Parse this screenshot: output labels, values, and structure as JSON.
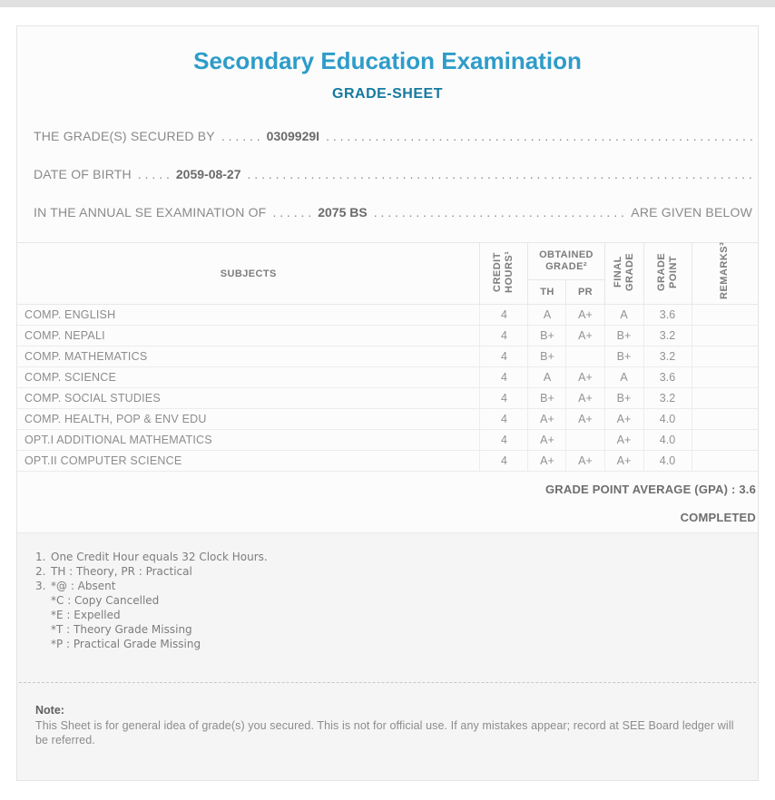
{
  "colors": {
    "title-color": "#2e9cc9",
    "subtitle-color": "#15799f"
  },
  "header": {
    "title": "Secondary Education Examination",
    "subtitle": "GRADE-SHEET"
  },
  "info": {
    "dots_fill": ". . . . . . . . . . . . . . . . . . . . . . . . . . . . . . . . . . . . . . . . . . . . . . . . . . . . . . . . . . . . . . . . . . . . . . . . . . . . . . . . . . . . . . . . . . . .",
    "lines": [
      {
        "label": "THE GRADE(S) SECURED BY",
        "dots_mid": ". . . . . .",
        "value": "0309929I",
        "suffix": ""
      },
      {
        "label": "DATE OF BIRTH",
        "dots_mid": ". . . . .",
        "value": "2059-08-27",
        "suffix": ""
      },
      {
        "label": "IN THE ANNUAL SE EXAMINATION OF",
        "dots_mid": ". . . . . .",
        "value": "2075 BS",
        "suffix": "ARE GIVEN BELOW"
      }
    ]
  },
  "table": {
    "headers": {
      "subjects": "SUBJECTS",
      "credit_hours": "CREDIT HOURS¹",
      "obtained_grade": "OBTAINED GRADE²",
      "th": "TH",
      "pr": "PR",
      "final_grade": "FINAL GRADE",
      "grade_point": "GRADE POINT",
      "remarks": "REMARKS³"
    },
    "rows": [
      {
        "subject": "COMP. ENGLISH",
        "credit": "4",
        "th": "A",
        "pr": "A+",
        "final": "A",
        "gp": "3.6",
        "remarks": ""
      },
      {
        "subject": "COMP. NEPALI",
        "credit": "4",
        "th": "B+",
        "pr": "A+",
        "final": "B+",
        "gp": "3.2",
        "remarks": ""
      },
      {
        "subject": "COMP. MATHEMATICS",
        "credit": "4",
        "th": "B+",
        "pr": "",
        "final": "B+",
        "gp": "3.2",
        "remarks": ""
      },
      {
        "subject": "COMP. SCIENCE",
        "credit": "4",
        "th": "A",
        "pr": "A+",
        "final": "A",
        "gp": "3.6",
        "remarks": ""
      },
      {
        "subject": "COMP. SOCIAL STUDIES",
        "credit": "4",
        "th": "B+",
        "pr": "A+",
        "final": "B+",
        "gp": "3.2",
        "remarks": ""
      },
      {
        "subject": "COMP. HEALTH, POP & ENV EDU",
        "credit": "4",
        "th": "A+",
        "pr": "A+",
        "final": "A+",
        "gp": "4.0",
        "remarks": ""
      },
      {
        "subject": "OPT.I ADDITIONAL MATHEMATICS",
        "credit": "4",
        "th": "A+",
        "pr": "",
        "final": "A+",
        "gp": "4.0",
        "remarks": ""
      },
      {
        "subject": "OPT.II COMPUTER SCIENCE",
        "credit": "4",
        "th": "A+",
        "pr": "A+",
        "final": "A+",
        "gp": "4.0",
        "remarks": ""
      }
    ]
  },
  "summary": {
    "gpa_label": "GRADE POINT AVERAGE (GPA) :",
    "gpa_value": "3.6",
    "status": "COMPLETED"
  },
  "footnotes": [
    {
      "num": "1.",
      "lines": [
        "One Credit Hour equals 32 Clock Hours."
      ]
    },
    {
      "num": "2.",
      "lines": [
        "TH : Theory, PR : Practical"
      ]
    },
    {
      "num": "3.",
      "lines": [
        "*@ : Absent",
        "*C : Copy Cancelled",
        "*E : Expelled",
        "*T : Theory Grade Missing",
        "*P : Practical Grade Missing"
      ]
    }
  ],
  "note": {
    "title": "Note:",
    "text": "This Sheet is for general idea of grade(s) you secured. This is not for official use. If any mistakes appear; record at SEE Board ledger will be referred."
  }
}
